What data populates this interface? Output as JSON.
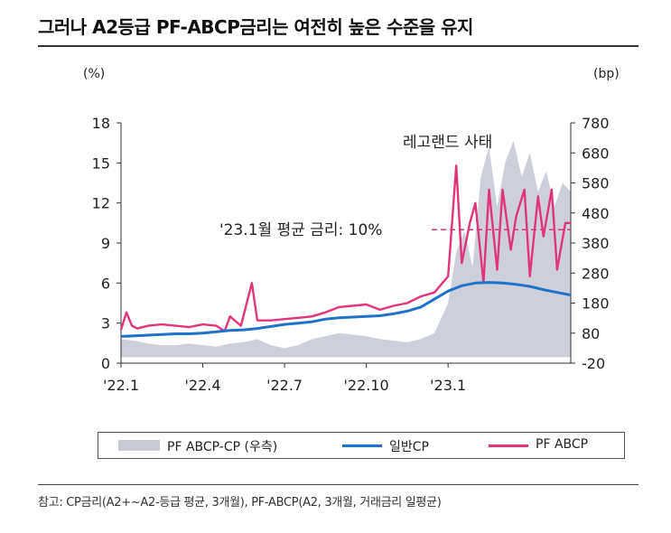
{
  "title": "그러나 A2등급 PF-ABCP금리는 여전히 높은 수준을 유지",
  "note": "참고: CP금리(A2+~A2-등급 평균, 3개월), PF-ABCP(A2, 3개월, 거래금리 일평균)",
  "chart_data": {
    "type": "line",
    "left_unit": "(%)",
    "right_unit": "(bp)",
    "x_ticks": [
      "'22.1",
      "'22.4",
      "'22.7",
      "'22.10",
      "'23.1"
    ],
    "y_left": {
      "min": 0,
      "max": 18,
      "ticks": [
        "0",
        "3",
        "6",
        "9",
        "12",
        "15",
        "18"
      ]
    },
    "y_right": {
      "min": -20,
      "max": 780,
      "ticks": [
        "-20",
        "80",
        "180",
        "280",
        "380",
        "480",
        "580",
        "680",
        "780"
      ]
    },
    "annotations": {
      "event": "레고랜드 사태",
      "average": "'23.1월 평균 금리: 10%",
      "average_value": 10
    },
    "legend": [
      "PF ABCP-CP (우측)",
      "일반CP",
      "PF ABCP"
    ],
    "colors": {
      "spread": "#c8cad6",
      "cp": "#1f72c9",
      "pfabcp": "#e0357a"
    },
    "series": [
      {
        "name": "일반CP",
        "x": [
          0,
          0.5,
          1,
          1.5,
          2,
          2.5,
          3,
          3.5,
          4,
          4.5,
          5,
          5.5,
          6,
          6.5,
          7,
          7.5,
          8,
          8.5,
          9,
          9.5,
          10,
          10.5,
          11,
          11.5,
          12,
          12.5,
          13,
          13.5,
          14,
          14.5,
          15,
          15.5,
          16,
          16.5
        ],
        "values": [
          2.0,
          2.05,
          2.1,
          2.15,
          2.2,
          2.2,
          2.25,
          2.35,
          2.45,
          2.5,
          2.6,
          2.75,
          2.9,
          3.0,
          3.1,
          3.3,
          3.4,
          3.45,
          3.5,
          3.55,
          3.7,
          3.9,
          4.2,
          4.8,
          5.4,
          5.8,
          6.0,
          6.05,
          6.0,
          5.9,
          5.75,
          5.5,
          5.3,
          5.1
        ]
      },
      {
        "name": "PF ABCP",
        "x": [
          0,
          0.2,
          0.4,
          0.6,
          1,
          1.5,
          2,
          2.5,
          3,
          3.5,
          3.8,
          4,
          4.4,
          4.8,
          5,
          5.5,
          6,
          6.5,
          7,
          7.5,
          8,
          8.5,
          9,
          9.5,
          10,
          10.5,
          11,
          11.5,
          12,
          12.3,
          12.5,
          12.8,
          13,
          13.3,
          13.5,
          13.8,
          14,
          14.3,
          14.5,
          14.8,
          15,
          15.3,
          15.5,
          15.8,
          16,
          16.3,
          16.5
        ],
        "values": [
          2.5,
          3.8,
          2.8,
          2.6,
          2.8,
          2.9,
          2.8,
          2.7,
          2.9,
          2.8,
          2.4,
          3.5,
          2.8,
          6.0,
          3.2,
          3.2,
          3.3,
          3.4,
          3.5,
          3.8,
          4.2,
          4.3,
          4.4,
          4.0,
          4.3,
          4.5,
          5.0,
          5.3,
          6.5,
          14.8,
          7.5,
          10.5,
          12.0,
          6.0,
          13.0,
          7.0,
          13.0,
          8.5,
          11.0,
          13.0,
          6.5,
          12.5,
          9.5,
          13.0,
          7.0,
          10.5,
          10.5
        ]
      },
      {
        "name": "PF ABCP-CP (우측)",
        "x": [
          0,
          0.5,
          1,
          1.5,
          2,
          2.5,
          3,
          3.5,
          4,
          4.5,
          5,
          5.5,
          6,
          6.5,
          7,
          7.5,
          8,
          8.5,
          9,
          9.5,
          10,
          10.5,
          11,
          11.5,
          12,
          12.3,
          12.6,
          12.9,
          13.2,
          13.5,
          13.8,
          14.1,
          14.4,
          14.7,
          15,
          15.3,
          15.6,
          15.9,
          16.2,
          16.5
        ],
        "values": [
          60,
          55,
          45,
          40,
          40,
          45,
          40,
          35,
          45,
          50,
          60,
          40,
          30,
          40,
          60,
          70,
          80,
          75,
          70,
          60,
          55,
          50,
          60,
          80,
          180,
          350,
          420,
          300,
          600,
          700,
          500,
          650,
          720,
          600,
          680,
          550,
          620,
          500,
          580,
          550
        ]
      }
    ]
  }
}
